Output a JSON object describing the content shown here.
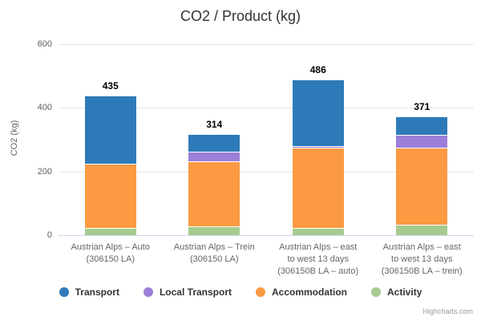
{
  "title": "CO2 / Product (kg)",
  "credits": "Highcharts.com",
  "colors": {
    "background": "#ffffff",
    "grid": "#e6e6e6",
    "axis_line": "#ccd6eb",
    "title_text": "#333333",
    "tick_text": "#606060",
    "category_text": "#666666",
    "legend_text": "#333333",
    "stack_label_text": "#000000",
    "credits_text": "#999999"
  },
  "chart_data": {
    "type": "bar",
    "stacked": true,
    "title": "CO2 / Product (kg)",
    "xlabel": "",
    "ylabel": "CO2 (kg)",
    "ylim": [
      0,
      600
    ],
    "yticks": [
      0,
      200,
      400,
      600
    ],
    "grid": true,
    "legend_position": "bottom",
    "categories": [
      "Austrian Alps – Auto (306150 LA)",
      "Austrian Alps – Trein (306150 LA)",
      "Austrian Alps – east to west 13 days (306150B LA – auto)",
      "Austrian Alps – east to west 13 days (306150B LA – trein)"
    ],
    "category_lines": [
      [
        "Austrian Alps – Auto",
        "(306150 LA)"
      ],
      [
        "Austrian Alps – Trein",
        "(306150 LA)"
      ],
      [
        "Austrian Alps – east",
        "to west 13 days",
        "(306150B LA – auto)"
      ],
      [
        "Austrian Alps – east",
        "to west 13 days",
        "(306150B LA – trein)"
      ]
    ],
    "series": [
      {
        "name": "Transport",
        "color": "#2e7ab8",
        "values": [
          212,
          54,
          209,
          58
        ]
      },
      {
        "name": "Local Transport",
        "color": "#9b7fd9",
        "values": [
          0,
          31,
          5,
          41
        ]
      },
      {
        "name": "Accommodation",
        "color": "#fb9a42",
        "values": [
          203,
          205,
          252,
          243
        ]
      },
      {
        "name": "Activity",
        "color": "#a5cb8e",
        "values": [
          20,
          24,
          20,
          29
        ]
      }
    ],
    "stack_order_bottom_to_top": [
      "Activity",
      "Accommodation",
      "Local Transport",
      "Transport"
    ],
    "totals": [
      435,
      314,
      486,
      371
    ]
  }
}
